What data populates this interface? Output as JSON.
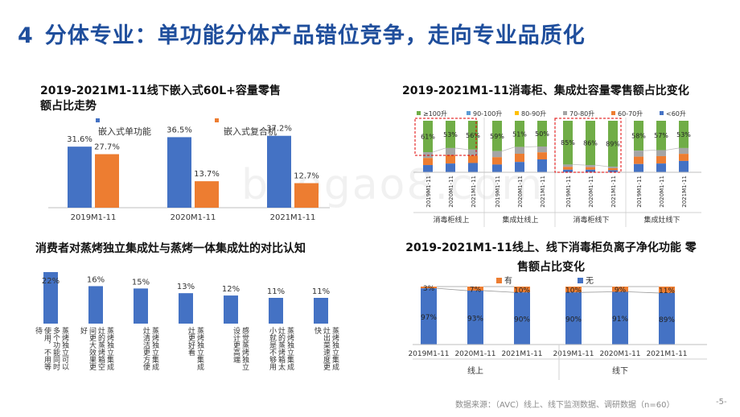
{
  "header": {
    "number": "4",
    "title": "分体专业：单功能分体产品错位竞争，走向专业品质化"
  },
  "footer": {
    "source": "数据来源：（AVC）线上、线下监测数据、调研数据（n=60）",
    "page": "-5-"
  },
  "watermark": "baogao8.com",
  "colors": {
    "blue": "#4472c4",
    "orange": "#ed7d31",
    "green": "#70ad47",
    "gray": "#a5a5a5",
    "yellow": "#ffc000",
    "lightblue": "#5b9bd5"
  },
  "chart_data": [
    {
      "id": "built-in-share",
      "type": "bar",
      "title": "2019-2021M1-11线下嵌入式60L+容量零售额占比走势",
      "categories": [
        "2019M1-11",
        "2020M1-11",
        "2021M1-11"
      ],
      "series": [
        {
          "name": "嵌入式单功能",
          "values": [
            31.6,
            36.5,
            37.2
          ],
          "labels": [
            "31.6%",
            "36.5%",
            "37.2%"
          ]
        },
        {
          "name": "嵌入式复合机",
          "values": [
            27.7,
            13.7,
            12.7
          ],
          "labels": [
            "27.7%",
            "13.7%",
            "12.7%"
          ]
        }
      ],
      "ylim": [
        0,
        40
      ]
    },
    {
      "id": "capacity-share",
      "type": "bar",
      "stacked": true,
      "title": "2019-2021M1-11消毒柜、集成灶容量零售额占比变化",
      "legend": [
        "≥100升",
        "90-100升",
        "80-90升",
        "70-80升",
        "60-70升",
        "<60升"
      ],
      "groups": [
        {
          "name": "消毒柜线上",
          "categories": [
            "2019M1-11",
            "2020M1-11",
            "2021M1-11"
          ],
          "green_labels": [
            "61%",
            "53%",
            "56%"
          ],
          "green": [
            61,
            53,
            56
          ],
          "blue": [
            14,
            17,
            18
          ]
        },
        {
          "name": "集成灶线上",
          "categories": [
            "2019M1-11",
            "2020M1-11",
            "2021M1-11"
          ],
          "green_labels": [
            "59%",
            "51%",
            "50%"
          ],
          "green": [
            59,
            51,
            50
          ],
          "blue": [
            15,
            20,
            25
          ]
        },
        {
          "name": "消毒柜线下",
          "categories": [
            "2019M1-11",
            "2020M1-11",
            "2021M1-11"
          ],
          "green_labels": [
            "85%",
            "86%",
            "89%"
          ],
          "green": [
            85,
            86,
            89
          ],
          "blue": [
            5,
            5,
            4
          ]
        },
        {
          "name": "集成灶线下",
          "categories": [
            "2019M1-11",
            "2020M1-11",
            "2021M1-11"
          ],
          "green_labels": [
            "58%",
            "57%",
            "53%"
          ],
          "green": [
            58,
            57,
            53
          ],
          "blue": [
            16,
            17,
            22
          ]
        }
      ]
    },
    {
      "id": "consumer-cognition",
      "type": "bar",
      "title": "消费者对蒸烤独立集成灶与蒸烤一体集成灶的对比认知",
      "categories": [
        "蒸烤独立可以多个功能同时使用，不用等待",
        "蒸烤独立集成灶的蒸烤箱空间更大效果更好",
        "蒸烤独立集成灶清洁更方便",
        "蒸烤独立集成灶更好看",
        "感觉蒸烤独立设计更高端",
        "蒸烤独立集成灶的蒸烤箱太小就是不够用",
        "蒸烤独立集成灶出菜速度更快"
      ],
      "values": [
        22,
        16,
        15,
        13,
        12,
        11,
        11
      ],
      "labels": [
        "22%",
        "16%",
        "15%",
        "13%",
        "12%",
        "11%",
        "11%"
      ],
      "ylim": [
        0,
        22
      ]
    },
    {
      "id": "anion-function",
      "type": "bar",
      "stacked": true,
      "title": "2019-2021M1-11线上、线下消毒柜负离子净化功能 零售额占比变化",
      "legend": [
        "有",
        "无"
      ],
      "groups": [
        {
          "name": "线上",
          "categories": [
            "2019M1-11",
            "2020M1-11",
            "2021M1-11"
          ],
          "none": [
            97,
            93,
            90
          ],
          "has": [
            3,
            7,
            10
          ],
          "none_labels": [
            "97%",
            "93%",
            "90%"
          ],
          "has_labels": [
            "3%",
            "7%",
            "10%"
          ]
        },
        {
          "name": "线下",
          "categories": [
            "2019M1-11",
            "2020M1-11",
            "2021M1-11"
          ],
          "none": [
            90,
            91,
            89
          ],
          "has": [
            10,
            9,
            11
          ],
          "none_labels": [
            "90%",
            "91%",
            "89%"
          ],
          "has_labels": [
            "10%",
            "9%",
            "11%"
          ]
        }
      ]
    }
  ]
}
